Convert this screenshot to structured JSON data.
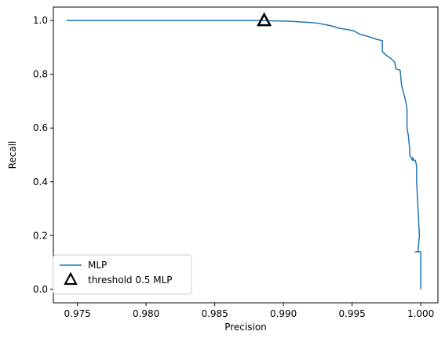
{
  "chart_data": {
    "type": "line",
    "xlabel": "Precision",
    "ylabel": "Recall",
    "xlim": [
      0.97325,
      1.00125
    ],
    "ylim": [
      -0.05,
      1.05
    ],
    "xticks": [
      0.975,
      0.98,
      0.985,
      0.99,
      0.995,
      1.0
    ],
    "xtick_labels": [
      "0.975",
      "0.980",
      "0.985",
      "0.990",
      "0.995",
      "1.000"
    ],
    "yticks": [
      0.0,
      0.2,
      0.4,
      0.6,
      0.8,
      1.0
    ],
    "ytick_labels": [
      "0.0",
      "0.2",
      "0.4",
      "0.6",
      "0.8",
      "1.0"
    ],
    "grid": false,
    "legend_position": "bottom-left",
    "series": [
      {
        "name": "MLP",
        "color": "#1f77b4",
        "x": [
          0.9742,
          0.98,
          0.985,
          0.9886,
          0.989,
          0.9905,
          0.9918,
          0.9925,
          0.993,
          0.9935,
          0.994,
          0.9942,
          0.9948,
          0.9952,
          0.9955,
          0.9962,
          0.9968,
          0.9972,
          0.9972,
          0.9975,
          0.9978,
          0.9981,
          0.9982,
          0.9985,
          0.9986,
          0.9987,
          0.9988,
          0.9989,
          0.999,
          0.999,
          0.9991,
          0.9992,
          0.9992,
          0.9994,
          0.9994,
          0.9995,
          0.9996,
          0.9997,
          0.9997,
          0.9998,
          0.9999,
          0.9998,
          0.9997,
          0.9996,
          0.99975,
          1.0,
          1.0
        ],
        "y": [
          1.0,
          1.0,
          1.0,
          1.0,
          0.999,
          0.997,
          0.993,
          0.99,
          0.985,
          0.98,
          0.972,
          0.97,
          0.965,
          0.96,
          0.95,
          0.94,
          0.93,
          0.925,
          0.885,
          0.87,
          0.86,
          0.845,
          0.82,
          0.815,
          0.76,
          0.74,
          0.72,
          0.7,
          0.67,
          0.6,
          0.57,
          0.52,
          0.5,
          0.48,
          0.49,
          0.48,
          0.48,
          0.46,
          0.4,
          0.3,
          0.2,
          0.14,
          0.14,
          0.14,
          0.14,
          0.14,
          0.0
        ]
      }
    ],
    "markers": [
      {
        "name": "threshold 0.5 MLP",
        "x": 0.9886,
        "y": 1.0,
        "shape": "triangle",
        "color": "#000000"
      }
    ]
  }
}
